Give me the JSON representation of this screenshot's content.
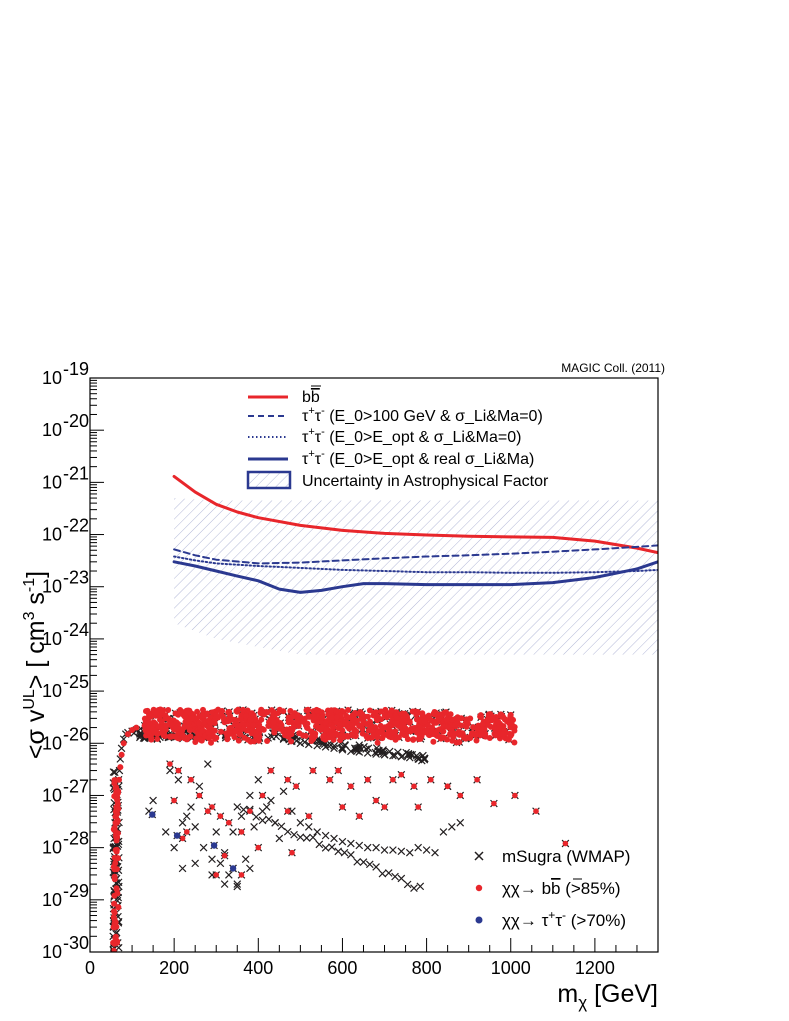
{
  "chart_data": {
    "type": "line",
    "credit": "MAGIC Coll. (2011)",
    "xlabel": "m_χ [GeV]",
    "ylabel": "<σ v^UL> [ cm^3 s^-1 ]",
    "xlim": [
      0,
      1350
    ],
    "ylim": [
      1e-30,
      1e-19
    ],
    "yscale": "log",
    "x_ticks": [
      0,
      200,
      400,
      600,
      800,
      1000,
      1200
    ],
    "y_tick_exponents": [
      -30,
      -29,
      -28,
      -27,
      -26,
      -25,
      -24,
      -23,
      -22,
      -21,
      -20,
      -19
    ],
    "y_tick_base": "10",
    "grid": false,
    "series": [
      {
        "name": "bb̄",
        "color": "#e8262b",
        "style": "solid",
        "x": [
          200,
          250,
          300,
          350,
          400,
          500,
          600,
          700,
          800,
          900,
          1000,
          1100,
          1200,
          1300,
          1350
        ],
        "y": [
          1.3e-21,
          6.5e-22,
          3.8e-22,
          2.7e-22,
          2.1e-22,
          1.5e-22,
          1.2e-22,
          1.05e-22,
          9.8e-23,
          9.3e-23,
          9e-23,
          8.8e-23,
          7.5e-23,
          5.5e-23,
          4.5e-23
        ]
      },
      {
        "name": "τ⁺τ⁻ (E_0>100 GeV & σ_Li&Ma=0)",
        "color": "#2b3990",
        "style": "dashed",
        "x": [
          200,
          250,
          300,
          400,
          500,
          600,
          700,
          800,
          900,
          1000,
          1100,
          1200,
          1300,
          1350
        ],
        "y": [
          5.2e-23,
          4e-23,
          3.3e-23,
          2.8e-23,
          2.9e-23,
          3.2e-23,
          3.5e-23,
          3.8e-23,
          4e-23,
          4.3e-23,
          4.7e-23,
          5.2e-23,
          5.8e-23,
          6.2e-23
        ]
      },
      {
        "name": "τ⁺τ⁻ (E_0>E_opt & σ_Li&Ma=0)",
        "color": "#2b3990",
        "style": "dotted",
        "x": [
          200,
          250,
          300,
          400,
          500,
          600,
          700,
          800,
          900,
          1000,
          1100,
          1200,
          1300,
          1350
        ],
        "y": [
          3.8e-23,
          3.2e-23,
          2.8e-23,
          2.5e-23,
          2.3e-23,
          2.1e-23,
          2e-23,
          1.9e-23,
          1.9e-23,
          1.85e-23,
          1.85e-23,
          1.9e-23,
          2e-23,
          2.1e-23
        ]
      },
      {
        "name": "τ⁺τ⁻ (E_0>E_opt & real σ_Li&Ma)",
        "color": "#2b3990",
        "style": "solid",
        "x": [
          200,
          250,
          300,
          350,
          400,
          450,
          500,
          550,
          600,
          650,
          700,
          800,
          900,
          1000,
          1100,
          1200,
          1300,
          1350
        ],
        "y": [
          3e-23,
          2.5e-23,
          2e-23,
          1.6e-23,
          1.3e-23,
          9e-24,
          7.8e-24,
          8.5e-24,
          1e-23,
          1.15e-23,
          1.15e-23,
          1.1e-23,
          1.1e-23,
          1.1e-23,
          1.2e-23,
          1.5e-23,
          2.2e-23,
          3e-23
        ]
      }
    ],
    "uncertainty_band": {
      "name": "Uncertainty in Astrophysical Factor",
      "color": "#2b3990",
      "x": [
        200,
        300,
        400,
        500,
        600,
        800,
        1000,
        1200,
        1350
      ],
      "upper": [
        5e-22,
        4.5e-22,
        4.5e-22,
        4.5e-22,
        4.5e-22,
        4.5e-22,
        4.5e-22,
        4.5e-22,
        4.5e-22
      ],
      "lower": [
        2e-24,
        1e-24,
        7e-25,
        5e-25,
        5e-25,
        5e-25,
        5e-25,
        5e-25,
        5e-25
      ]
    },
    "scatter_legend": [
      {
        "name": "mSugra (WMAP)",
        "marker": "x",
        "color": "#231f20"
      },
      {
        "name": "χχ→ bb̄ (>85%)",
        "marker": "dot",
        "color": "#e8262b"
      },
      {
        "name": "χχ→ τ⁺τ⁻ (>70%)",
        "marker": "dot",
        "color": "#2b3990"
      }
    ],
    "scatter_points": {
      "msugra_edge": {
        "x": [
          55,
          55,
          56,
          57,
          57,
          58,
          59,
          60,
          61,
          62,
          63,
          64,
          66,
          68,
          70,
          72,
          75,
          80,
          85,
          90,
          100,
          110,
          120,
          140
        ],
        "y": [
          1.1e-30,
          2e-30,
          4e-30,
          8e-30,
          1.5e-29,
          3e-29,
          6e-29,
          1e-28,
          2e-28,
          3e-28,
          5e-28,
          8e-28,
          1.3e-27,
          2e-27,
          3e-27,
          5e-27,
          8e-27,
          1.2e-26,
          1.5e-26,
          1.6e-26,
          1.7e-26,
          1.8e-26,
          1.9e-26,
          2e-26
        ]
      },
      "msugra_tail": {
        "x": [
          460,
          480,
          500,
          520,
          540,
          560,
          580,
          600,
          620,
          640,
          660,
          680,
          700,
          720,
          740,
          760,
          780
        ],
        "y": [
          1.2e-26,
          1.1e-26,
          1e-26,
          9.5e-27,
          9e-27,
          8.5e-27,
          8e-27,
          7.5e-27,
          7e-27,
          6.8e-27,
          6.5e-27,
          6.2e-27,
          6e-27,
          5.8e-27,
          5.5e-27,
          5.3e-27,
          5e-27
        ]
      },
      "msugra_scattered": {
        "x": [
          140,
          150,
          180,
          200,
          220,
          240,
          260,
          280,
          300,
          320,
          340,
          360,
          380,
          400,
          420,
          440,
          460,
          480,
          500,
          520,
          540,
          560,
          580,
          600,
          620,
          640,
          660,
          680,
          700,
          720,
          740,
          760,
          780,
          800,
          820,
          840,
          860,
          880,
          190,
          210,
          230,
          250,
          270,
          290,
          310,
          330,
          350,
          370,
          390,
          410,
          430,
          450,
          220,
          250,
          290,
          320,
          350,
          380
        ],
        "y": [
          5e-28,
          8e-28,
          2e-28,
          1e-28,
          3e-28,
          6e-28,
          1.5e-27,
          4e-27,
          2e-28,
          8e-29,
          2e-28,
          4e-28,
          1e-27,
          2e-27,
          6e-28,
          3e-28,
          1.2e-27,
          5e-28,
          3e-28,
          2.5e-28,
          2e-28,
          1.7e-28,
          1.5e-28,
          1.3e-28,
          1.2e-28,
          1.1e-28,
          1e-28,
          1e-28,
          9e-29,
          9e-29,
          8.5e-29,
          8e-29,
          1e-28,
          9e-29,
          8e-29,
          2e-28,
          2.5e-28,
          3e-28,
          3e-27,
          2e-27,
          4e-28,
          2.5e-28,
          1e-28,
          6e-29,
          5e-29,
          3e-29,
          2e-29,
          6e-29,
          2.5e-28,
          5e-28,
          8e-28,
          1.5e-28,
          4e-29,
          5e-29,
          3e-29,
          2e-29,
          1.8e-29,
          4e-29
        ]
      },
      "bb_edge": {
        "x": [
          55,
          56,
          57,
          58,
          59,
          60,
          61,
          62,
          63,
          64,
          65,
          67,
          69,
          72,
          75,
          80,
          90,
          100,
          110,
          130,
          150
        ],
        "y": [
          1.5e-30,
          3e-30,
          6e-30,
          1.2e-29,
          2.5e-29,
          5e-29,
          9e-29,
          1.6e-28,
          3e-28,
          5e-28,
          8e-28,
          1.2e-27,
          2e-27,
          3.5e-27,
          6e-27,
          1e-26,
          1.5e-26,
          1.8e-26,
          2e-26,
          2.2e-26,
          2.3e-26
        ]
      },
      "bb_scattered": {
        "x": [
          160,
          190,
          210,
          240,
          260,
          290,
          310,
          330,
          360,
          380,
          410,
          430,
          470,
          490,
          530,
          570,
          590,
          620,
          660,
          700,
          740,
          770,
          810,
          850,
          880,
          920,
          960,
          1010,
          1060,
          1130,
          200,
          230,
          280,
          320,
          360,
          400,
          470,
          520,
          600,
          640,
          680,
          720,
          780,
          850,
          220,
          300,
          340,
          480
        ],
        "y": [
          1.2e-26,
          4e-27,
          3e-27,
          2e-27,
          1e-27,
          6e-28,
          4e-28,
          3e-28,
          2e-28,
          5e-28,
          1e-27,
          3e-27,
          2e-27,
          1.5e-27,
          3e-27,
          2e-27,
          3e-27,
          1.5e-27,
          2e-27,
          6e-28,
          2.5e-27,
          1.5e-27,
          2e-27,
          1.5e-27,
          1e-27,
          2e-27,
          7e-28,
          1e-27,
          5e-28,
          1.2e-28,
          8e-28,
          2e-28,
          5e-28,
          7e-29,
          3e-29,
          1e-28,
          5e-28,
          4e-28,
          6e-28,
          4e-28,
          8e-28,
          2e-27,
          6e-28,
          1.5e-27,
          1.5e-28,
          3e-29,
          4e-29,
          8e-29
        ]
      },
      "tau_points": {
        "x": [
          148,
          207,
          295,
          340
        ],
        "y": [
          4.3e-28,
          1.7e-28,
          1.1e-28,
          4e-29
        ]
      }
    }
  }
}
